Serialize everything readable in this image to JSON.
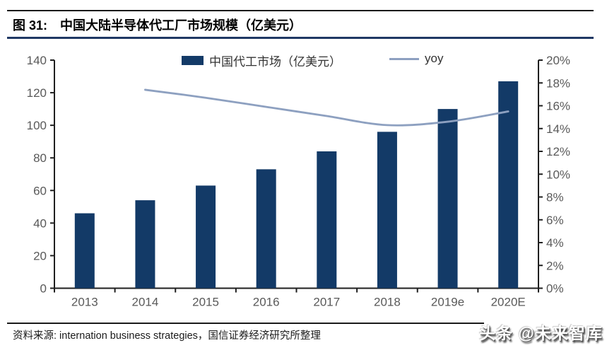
{
  "header": {
    "figure_label": "图 31:",
    "title": "中国大陆半导体代工厂市场规模（亿美元）",
    "rule_color": "#1F3864"
  },
  "legend": {
    "bar_label": "中国代工市场（亿美元）",
    "line_label": "yoy"
  },
  "footer": {
    "source": "资料来源: internation business strategies，国信证券经济研究所整理",
    "watermark": "头条 @未来智库"
  },
  "chart_data": {
    "type": "bar",
    "title": "中国大陆半导体代工厂市场规模（亿美元）",
    "categories": [
      "2013",
      "2014",
      "2015",
      "2016",
      "2017",
      "2018",
      "2019e",
      "2020E"
    ],
    "series": [
      {
        "name": "中国代工市场（亿美元）",
        "chart_type": "bar",
        "axis": "left",
        "color": "#133A67",
        "values": [
          46,
          54,
          63,
          73,
          84,
          96,
          110,
          127
        ]
      },
      {
        "name": "yoy",
        "chart_type": "line",
        "axis": "right",
        "color": "#8DA0C0",
        "values": [
          null,
          17.4,
          16.7,
          15.9,
          15.1,
          14.3,
          14.6,
          15.5
        ]
      }
    ],
    "left_axis": {
      "min": 0,
      "max": 140,
      "step": 20,
      "ticks": [
        "0",
        "20",
        "40",
        "60",
        "80",
        "100",
        "120",
        "140"
      ]
    },
    "right_axis": {
      "min": 0,
      "max": 20,
      "step": 2,
      "ticks": [
        "0%",
        "2%",
        "4%",
        "6%",
        "8%",
        "10%",
        "12%",
        "14%",
        "16%",
        "18%",
        "20%"
      ]
    },
    "legend_position": "top",
    "grid": false,
    "axis_color": "#1f1f1f",
    "tick_label_color": "#595959"
  }
}
